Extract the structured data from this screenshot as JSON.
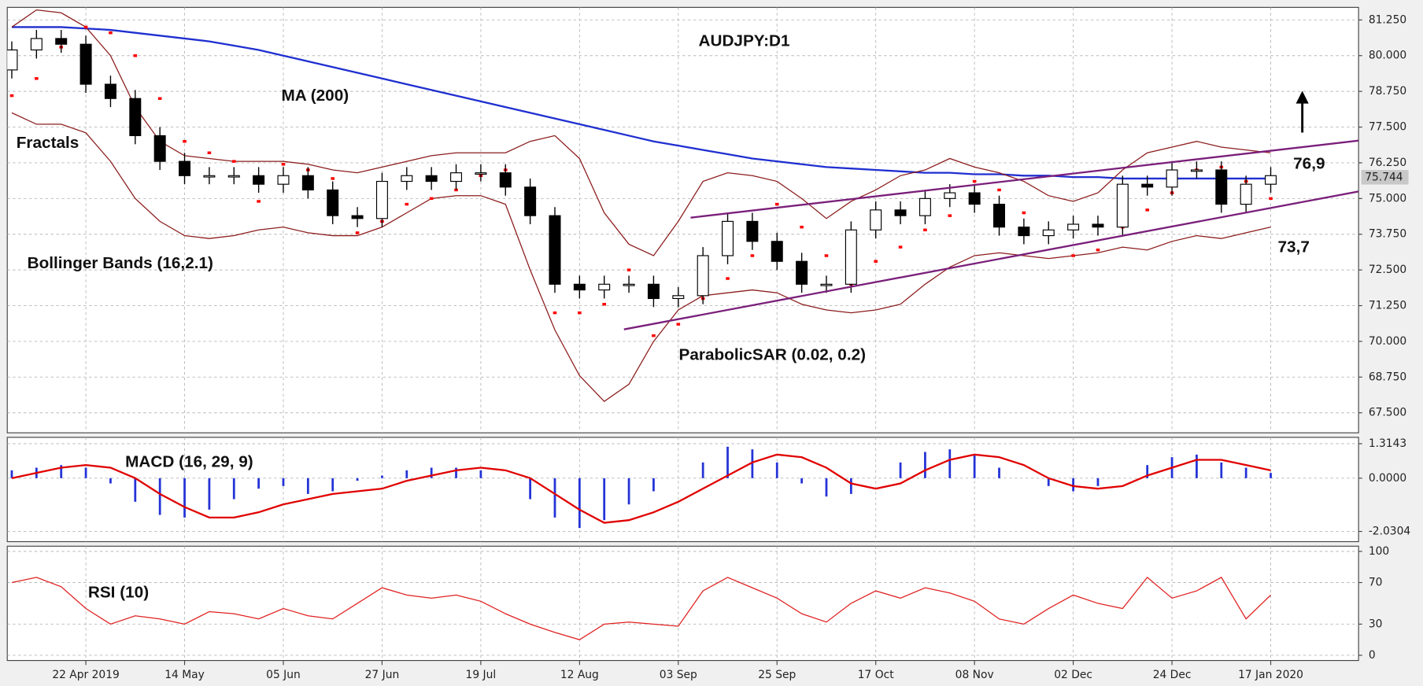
{
  "chart_data": [
    {
      "type": "candlestick",
      "title": "AUDJPY:D1",
      "categories": [
        null,
        null,
        null,
        "22 Apr 2019",
        null,
        null,
        null,
        "14 May",
        null,
        null,
        null,
        "05 Jun",
        null,
        null,
        null,
        "27 Jun",
        null,
        null,
        null,
        "19 Jul",
        null,
        null,
        null,
        "12 Aug",
        null,
        null,
        null,
        "03 Sep",
        null,
        null,
        null,
        "25 Sep",
        null,
        null,
        null,
        "17 Oct",
        null,
        null,
        null,
        "08 Nov",
        null,
        null,
        null,
        "02 Dec",
        null,
        null,
        null,
        "24 Dec",
        null,
        null,
        null,
        "17 Jan 2020"
      ],
      "ohlc": {
        "open": [
          79.5,
          80.2,
          80.6,
          80.4,
          79.0,
          78.5,
          77.2,
          76.3,
          75.8,
          75.8,
          75.8,
          75.5,
          75.8,
          75.3,
          74.4,
          74.3,
          75.6,
          75.8,
          75.6,
          75.9,
          75.9,
          75.4,
          74.4,
          72.0,
          71.8,
          72.0,
          72.0,
          71.5,
          71.6,
          73.0,
          74.2,
          73.5,
          72.8,
          72.0,
          72.0,
          73.9,
          74.6,
          74.4,
          75.0,
          75.2,
          74.8,
          74.0,
          73.7,
          73.9,
          74.1,
          74.0,
          75.5,
          75.4,
          76.0,
          76.0,
          74.8,
          75.5
        ],
        "high": [
          80.5,
          80.9,
          80.9,
          80.7,
          79.3,
          78.8,
          77.5,
          76.6,
          76.1,
          76.1,
          76.1,
          76.1,
          76.1,
          75.6,
          74.7,
          75.9,
          76.1,
          76.1,
          76.2,
          76.2,
          76.2,
          75.7,
          74.7,
          72.3,
          72.3,
          72.3,
          72.3,
          71.9,
          73.3,
          74.5,
          74.5,
          73.8,
          73.1,
          72.3,
          74.2,
          74.9,
          74.9,
          75.3,
          75.5,
          75.5,
          75.1,
          74.3,
          74.2,
          74.4,
          74.4,
          75.8,
          75.8,
          76.3,
          76.3,
          76.3,
          75.8,
          76.1
        ],
        "low": [
          79.2,
          79.9,
          80.1,
          78.7,
          78.2,
          76.9,
          76.0,
          75.5,
          75.5,
          75.5,
          75.2,
          75.2,
          75.0,
          74.1,
          74.0,
          74.0,
          75.3,
          75.3,
          75.3,
          75.6,
          75.1,
          74.1,
          71.7,
          71.5,
          71.5,
          71.7,
          71.2,
          71.2,
          71.3,
          72.7,
          73.2,
          72.5,
          71.7,
          71.7,
          71.7,
          73.6,
          74.1,
          74.1,
          74.7,
          74.5,
          73.7,
          73.4,
          73.4,
          73.6,
          73.7,
          73.7,
          75.1,
          75.1,
          75.7,
          74.5,
          74.5,
          75.2
        ],
        "close": [
          80.2,
          80.6,
          80.4,
          79.0,
          78.5,
          77.2,
          76.3,
          75.8,
          75.8,
          75.8,
          75.5,
          75.8,
          75.3,
          74.4,
          74.3,
          75.6,
          75.8,
          75.6,
          75.9,
          75.9,
          75.4,
          74.4,
          72.0,
          71.8,
          72.0,
          72.0,
          71.5,
          71.6,
          73.0,
          74.2,
          73.5,
          72.8,
          72.0,
          72.0,
          73.9,
          74.6,
          74.4,
          75.0,
          75.2,
          74.8,
          74.0,
          73.7,
          73.9,
          74.1,
          74.0,
          75.5,
          75.4,
          76.0,
          76.0,
          74.8,
          75.5,
          75.8
        ]
      },
      "up_color": "#ffffff",
      "down_color": "#000000",
      "series": [
        {
          "name": "MA (200)",
          "color": "#1f2fd0",
          "values": [
            81.0,
            81.0,
            81.0,
            80.95,
            80.9,
            80.8,
            80.7,
            80.6,
            80.5,
            80.35,
            80.2,
            80.0,
            79.8,
            79.6,
            79.4,
            79.2,
            79.0,
            78.8,
            78.6,
            78.4,
            78.2,
            78.0,
            77.8,
            77.6,
            77.4,
            77.2,
            77.0,
            76.85,
            76.7,
            76.55,
            76.4,
            76.3,
            76.2,
            76.1,
            76.05,
            76.0,
            75.95,
            75.9,
            75.9,
            75.85,
            75.85,
            75.8,
            75.8,
            75.75,
            75.75,
            75.7,
            75.7,
            75.7,
            75.7,
            75.7,
            75.7,
            75.7
          ]
        },
        {
          "name": "Bollinger Bands (16,2.1)",
          "color": "#8b1c1c",
          "values": [
            81.0,
            81.6,
            81.5,
            81.0,
            80.0,
            78.2,
            77.0,
            76.5,
            76.4,
            76.3,
            76.3,
            76.3,
            76.2,
            76.0,
            75.9,
            76.1,
            76.3,
            76.5,
            76.6,
            76.6,
            76.6,
            77.0,
            77.2,
            76.4,
            74.5,
            73.4,
            73.0,
            74.2,
            75.6,
            75.9,
            75.8,
            75.6,
            75.0,
            74.3,
            74.9,
            75.3,
            75.8,
            76.0,
            76.4,
            76.1,
            75.9,
            75.6,
            75.1,
            74.9,
            75.2,
            76.0,
            76.6,
            76.8,
            77.0,
            76.8,
            76.7,
            76.6
          ],
          "lower": [
            78.0,
            77.6,
            77.6,
            77.3,
            76.3,
            75.0,
            74.2,
            73.7,
            73.6,
            73.7,
            73.9,
            74.0,
            73.8,
            73.7,
            73.7,
            74.0,
            74.5,
            75.0,
            75.1,
            75.1,
            74.8,
            72.5,
            70.4,
            68.8,
            67.9,
            68.5,
            70.0,
            71.1,
            71.6,
            71.7,
            71.8,
            71.7,
            71.3,
            71.1,
            71.0,
            71.1,
            71.3,
            72.0,
            72.6,
            73.0,
            73.1,
            73.0,
            72.9,
            73.0,
            73.1,
            73.3,
            73.2,
            73.5,
            73.7,
            73.6,
            73.8,
            74.0
          ]
        },
        {
          "name": "ParabolicSAR (0.02, 0.2)",
          "color": "#ff0000",
          "style": "dots",
          "values": [
            78.6,
            79.2,
            80.3,
            81.0,
            80.8,
            80.0,
            78.5,
            77.0,
            76.6,
            76.3,
            74.9,
            76.2,
            76.0,
            75.7,
            73.8,
            74.2,
            74.8,
            75.0,
            75.3,
            75.8,
            76.0,
            75.0,
            71.0,
            71.0,
            71.3,
            72.5,
            70.2,
            70.6,
            71.5,
            72.2,
            73.0,
            74.8,
            74.0,
            73.0,
            72.0,
            72.8,
            73.3,
            73.9,
            74.4,
            75.6,
            75.3,
            74.5,
            73.8,
            73.0,
            73.2,
            74.0,
            74.6,
            75.2,
            76.0,
            76.1,
            75.6,
            75.0
          ]
        }
      ],
      "fractals_label": "Fractals",
      "trendlines": [
        {
          "color": "#7a1f7a",
          "x": [
            27.5,
            55.2
          ],
          "y": [
            74.33,
            77.09
          ]
        },
        {
          "color": "#7a1f7a",
          "x": [
            24.8,
            55.2
          ],
          "y": [
            70.42,
            75.35
          ]
        }
      ],
      "targets": [
        "76,9",
        "73,7"
      ],
      "last_price": 75.744,
      "ylim": [
        66.8,
        81.69
      ],
      "yticks": [
        {
          "value": 67.5,
          "label": "67.500"
        },
        {
          "value": 68.75,
          "label": "68.750"
        },
        {
          "value": 70,
          "label": "70.000"
        },
        {
          "value": 71.25,
          "label": "71.250"
        },
        {
          "value": 72.5,
          "label": "72.500"
        },
        {
          "value": 73.75,
          "label": "73.750"
        },
        {
          "value": 75,
          "label": "75.000"
        },
        {
          "value": 76.25,
          "label": "76.250"
        },
        {
          "value": 77.5,
          "label": "77.500"
        },
        {
          "value": 78.75,
          "label": "78.750"
        },
        {
          "value": 80,
          "label": "80.000"
        },
        {
          "value": 81.25,
          "label": "81.250"
        }
      ],
      "grid": true
    },
    {
      "type": "macd",
      "title": "MACD (16, 29, 9)",
      "series": [
        {
          "color": "#2433d6",
          "style": "bar",
          "values": [
            0.3,
            0.4,
            0.5,
            0.4,
            -0.2,
            -0.9,
            -1.4,
            -1.5,
            -1.2,
            -0.8,
            -0.4,
            -0.3,
            -0.6,
            -0.5,
            -0.1,
            0.1,
            0.3,
            0.4,
            0.4,
            0.3,
            0.0,
            -0.8,
            -1.5,
            -1.9,
            -1.6,
            -1.0,
            -0.5,
            0.0,
            0.6,
            1.2,
            1.1,
            0.6,
            -0.2,
            -0.7,
            -0.6,
            0.0,
            0.6,
            1.0,
            1.1,
            0.9,
            0.4,
            0.0,
            -0.3,
            -0.5,
            -0.3,
            0.0,
            0.5,
            0.8,
            0.9,
            0.6,
            0.4,
            0.2
          ]
        },
        {
          "color": "#e00000",
          "values": [
            0.0,
            0.2,
            0.4,
            0.5,
            0.4,
            0.0,
            -0.6,
            -1.1,
            -1.5,
            -1.5,
            -1.3,
            -1.0,
            -0.8,
            -0.6,
            -0.5,
            -0.4,
            -0.1,
            0.1,
            0.3,
            0.4,
            0.3,
            0.0,
            -0.6,
            -1.2,
            -1.7,
            -1.6,
            -1.3,
            -0.9,
            -0.4,
            0.1,
            0.6,
            0.9,
            0.8,
            0.4,
            -0.2,
            -0.4,
            -0.2,
            0.3,
            0.7,
            0.9,
            0.8,
            0.5,
            0.0,
            -0.3,
            -0.4,
            -0.3,
            0.1,
            0.4,
            0.7,
            0.7,
            0.5,
            0.3
          ]
        }
      ],
      "ylim": [
        -2.42,
        1.557
      ],
      "yticks": [
        {
          "value": -2.0304,
          "label": "-2.0304"
        },
        {
          "value": 0,
          "label": "0.0000"
        },
        {
          "value": 1.3143,
          "label": "1.3143"
        }
      ],
      "grid": true
    },
    {
      "type": "line",
      "title": "RSI (10)",
      "series": [
        {
          "color": "#e02020",
          "values": [
            70,
            75,
            66,
            45,
            30,
            38,
            35,
            30,
            42,
            40,
            35,
            45,
            38,
            35,
            50,
            65,
            58,
            55,
            58,
            52,
            40,
            30,
            22,
            15,
            30,
            32,
            30,
            28,
            62,
            75,
            65,
            55,
            40,
            32,
            50,
            62,
            55,
            65,
            60,
            52,
            35,
            30,
            45,
            58,
            50,
            45,
            75,
            55,
            62,
            75,
            35,
            58
          ]
        }
      ],
      "ylim": [
        -5,
        105
      ],
      "yticks": [
        0,
        30,
        70,
        100
      ],
      "grid": true
    }
  ]
}
